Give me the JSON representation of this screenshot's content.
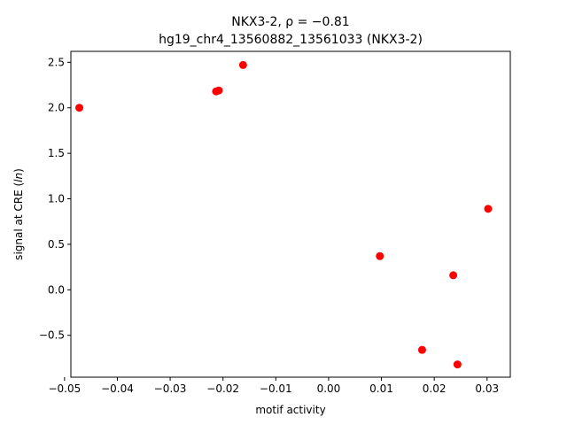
{
  "chart_data": {
    "type": "scatter",
    "title": "NKX3-2, ρ = −0.81",
    "subtitle": "hg19_chr4_13560882_13561033 (NKX3-2)",
    "xlabel": "motif activity",
    "ylabel": "signal at CRE (ln)",
    "xlim": [
      -0.0488,
      0.0344
    ],
    "ylim": [
      -0.96,
      2.62
    ],
    "xticks": [
      -0.05,
      -0.04,
      -0.03,
      -0.02,
      -0.01,
      0.0,
      0.01,
      0.02,
      0.03
    ],
    "xtick_labels": [
      "−0.05",
      "−0.04",
      "−0.03",
      "−0.02",
      "−0.01",
      "0.00",
      "0.01",
      "0.02",
      "0.03"
    ],
    "yticks": [
      -0.5,
      0.0,
      0.5,
      1.0,
      1.5,
      2.0,
      2.5
    ],
    "ytick_labels": [
      "−0.5",
      "0.0",
      "0.5",
      "1.0",
      "1.5",
      "2.0",
      "2.5"
    ],
    "marker_color": "#ff0000",
    "grid": false,
    "points": [
      {
        "x": -0.0472,
        "y": 2.0
      },
      {
        "x": -0.0213,
        "y": 2.18
      },
      {
        "x": -0.0208,
        "y": 2.19
      },
      {
        "x": -0.0162,
        "y": 2.47
      },
      {
        "x": 0.0097,
        "y": 0.37
      },
      {
        "x": 0.0177,
        "y": -0.66
      },
      {
        "x": 0.0236,
        "y": 0.16
      },
      {
        "x": 0.0244,
        "y": -0.82
      },
      {
        "x": 0.0302,
        "y": 0.89
      }
    ]
  }
}
